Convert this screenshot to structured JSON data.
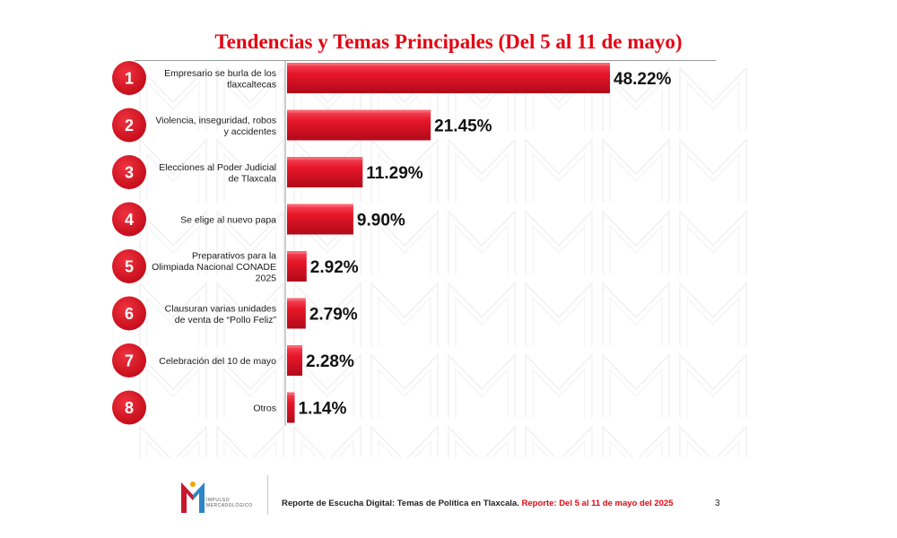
{
  "title": "Tendencias y Temas Principales (Del 5 al 11 de mayo)",
  "colors": {
    "accent": "#e30613",
    "bar": "#e8162a",
    "bar_dark": "#b00a1a"
  },
  "chart_data": {
    "type": "bar",
    "orientation": "horizontal",
    "title": "Tendencias y Temas Principales (Del 5 al 11 de mayo)",
    "xlabel": "",
    "ylabel": "",
    "xlim": [
      0,
      48.22
    ],
    "grid": false,
    "legend": "none",
    "items": [
      {
        "rank": "1",
        "label_lines": [
          "Empresario se burla de los",
          "tlaxcaltecas"
        ],
        "value": 48.22,
        "value_label": "48.22%"
      },
      {
        "rank": "2",
        "label_lines": [
          "Violencia, inseguridad, robos",
          "y accidentes"
        ],
        "value": 21.45,
        "value_label": "21.45%"
      },
      {
        "rank": "3",
        "label_lines": [
          "Elecciones al Poder Judicial",
          "de Tlaxcala"
        ],
        "value": 11.29,
        "value_label": "11.29%"
      },
      {
        "rank": "4",
        "label_lines": [
          "Se elige al nuevo papa"
        ],
        "value": 9.9,
        "value_label": "9.90%"
      },
      {
        "rank": "5",
        "label_lines": [
          "Preparativos para la",
          "Olimpiada Nacional CONADE",
          "2025"
        ],
        "value": 2.92,
        "value_label": "2.92%"
      },
      {
        "rank": "6",
        "label_lines": [
          "Clausuran varias unidades",
          "de venta de “Pollo Feliz”"
        ],
        "value": 2.79,
        "value_label": "2.79%"
      },
      {
        "rank": "7",
        "label_lines": [
          "Celebración del 10 de mayo"
        ],
        "value": 2.28,
        "value_label": "2.28%"
      },
      {
        "rank": "8",
        "label_lines": [
          "Otros"
        ],
        "value": 1.14,
        "value_label": "1.14%"
      }
    ]
  },
  "footer": {
    "logo_lines": [
      "IMPULSO",
      "MERCADOLÓGICO"
    ],
    "text_main": "Reporte de Escucha Digital: Temas de Política en Tlaxcala.",
    "text_red": "Reporte: Del  5 al 11 de mayo del 2025",
    "page_number": "3"
  }
}
